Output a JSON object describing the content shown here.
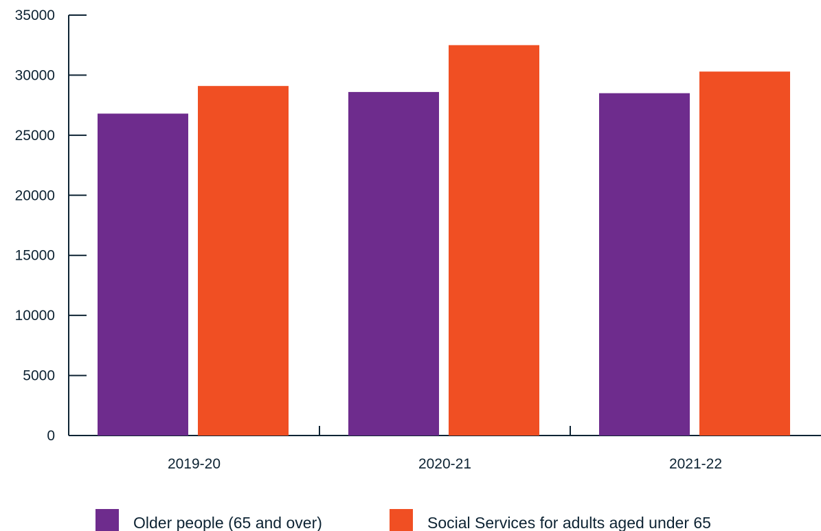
{
  "colors": {
    "axis": "#0d2333",
    "text": "#0d2333",
    "background": "#ffffff"
  },
  "chart_data": {
    "type": "bar",
    "title": "",
    "xlabel": "",
    "ylabel": "",
    "categories": [
      "2019-20",
      "2020-21",
      "2021-22"
    ],
    "series": [
      {
        "name": "Older people (65 and over)",
        "color": "#6e2c8d",
        "values": [
          26800,
          28600,
          28500
        ]
      },
      {
        "name": "Social Services for adults aged under 65",
        "color": "#f04f23",
        "values": [
          29100,
          32500,
          30300
        ]
      }
    ],
    "ylim": [
      0,
      35000
    ],
    "yticks": [
      "0",
      "5000",
      "10000",
      "15000",
      "20000",
      "25000",
      "30000",
      "35000"
    ],
    "grid": false,
    "legend_position": "bottom"
  }
}
